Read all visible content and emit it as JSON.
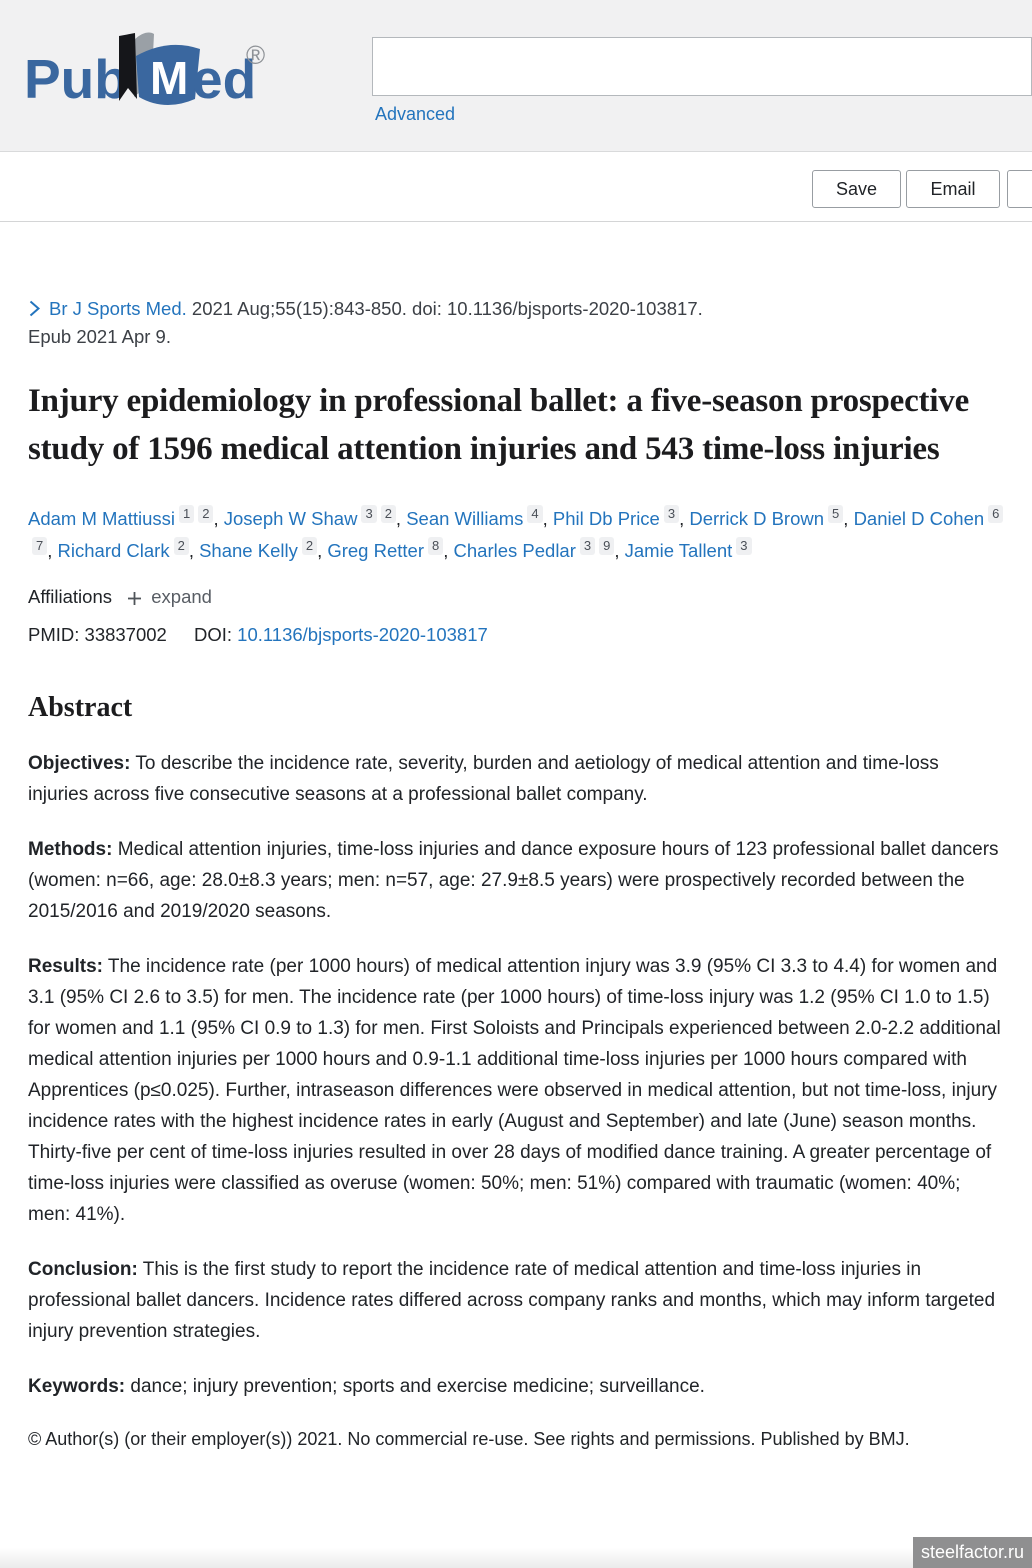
{
  "header": {
    "logo": {
      "pub": "Pub",
      "m": "M",
      "ed": "ed",
      "registered": "®"
    },
    "search": {
      "value": ""
    },
    "advanced_label": "Advanced",
    "actions": {
      "save_label": "Save",
      "email_label": "Email",
      "partial_label": ""
    }
  },
  "citation": {
    "journal": "Br J Sports Med.",
    "details": "2021 Aug;55(15):843-850. doi: 10.1136/bjsports-2020-103817.",
    "epub": "Epub 2021 Apr 9."
  },
  "title": "Injury epidemiology in professional ballet: a five-season prospective study of 1596 medical attention injuries and 543 time-loss injuries",
  "authors": [
    {
      "name": "Adam M Mattiussi",
      "sups": [
        "1",
        "2"
      ]
    },
    {
      "name": "Joseph W Shaw",
      "sups": [
        "3",
        "2"
      ]
    },
    {
      "name": "Sean Williams",
      "sups": [
        "4"
      ]
    },
    {
      "name": "Phil Db Price",
      "sups": [
        "3"
      ]
    },
    {
      "name": "Derrick D Brown",
      "sups": [
        "5"
      ]
    },
    {
      "name": "Daniel D Cohen",
      "sups": [
        "6",
        "7"
      ]
    },
    {
      "name": "Richard Clark",
      "sups": [
        "2"
      ]
    },
    {
      "name": "Shane Kelly",
      "sups": [
        "2"
      ]
    },
    {
      "name": "Greg Retter",
      "sups": [
        "8"
      ]
    },
    {
      "name": "Charles Pedlar",
      "sups": [
        "3",
        "9"
      ]
    },
    {
      "name": "Jamie Tallent",
      "sups": [
        "3"
      ]
    }
  ],
  "affiliations": {
    "label": "Affiliations",
    "expand_label": "expand"
  },
  "ids": {
    "pmid_label": "PMID:",
    "pmid": "33837002",
    "doi_label": "DOI:",
    "doi": "10.1136/bjsports-2020-103817"
  },
  "abstract": {
    "heading": "Abstract",
    "sections": [
      {
        "label": "Objectives:",
        "text": "To describe the incidence rate, severity, burden and aetiology of medical attention and time-loss injuries across five consecutive seasons at a professional ballet company."
      },
      {
        "label": "Methods:",
        "text": "Medical attention injuries, time-loss injuries and dance exposure hours of 123 professional ballet dancers (women: n=66, age: 28.0±8.3 years; men: n=57, age: 27.9±8.5 years) were prospectively recorded between the 2015/2016 and 2019/2020 seasons."
      },
      {
        "label": "Results:",
        "text": "The incidence rate (per 1000 hours) of medical attention injury was 3.9 (95% CI 3.3 to 4.4) for women and 3.1 (95% CI 2.6 to 3.5) for men. The incidence rate (per 1000 hours) of time-loss injury was 1.2 (95% CI 1.0 to 1.5) for women and 1.1 (95% CI 0.9 to 1.3) for men. First Soloists and Principals experienced between 2.0-2.2 additional medical attention injuries per 1000 hours and 0.9-1.1 additional time-loss injuries per 1000 hours compared with Apprentices (p≤0.025). Further, intraseason differences were observed in medical attention, but not time-loss, injury incidence rates with the highest incidence rates in early (August and September) and late (June) season months. Thirty-five per cent of time-loss injuries resulted in over 28 days of modified dance training. A greater percentage of time-loss injuries were classified as overuse (women: 50%; men: 51%) compared with traumatic (women: 40%; men: 41%)."
      },
      {
        "label": "Conclusion:",
        "text": "This is the first study to report the incidence rate of medical attention and time-loss injuries in professional ballet dancers. Incidence rates differed across company ranks and months, which may inform targeted injury prevention strategies."
      },
      {
        "label": "Keywords:",
        "text": "dance; injury prevention; sports and exercise medicine; surveillance."
      }
    ],
    "copyright": "© Author(s) (or their employer(s)) 2021. No commercial re-use. See rights and permissions. Published by BMJ."
  },
  "watermark": "steelfactor.ru",
  "colors": {
    "link_blue": "#2374bd",
    "logo_blue": "#3a679f",
    "header_gray": "#f1f1f2",
    "text_dark": "#212428",
    "watermark_bg": "#8f8f90"
  }
}
